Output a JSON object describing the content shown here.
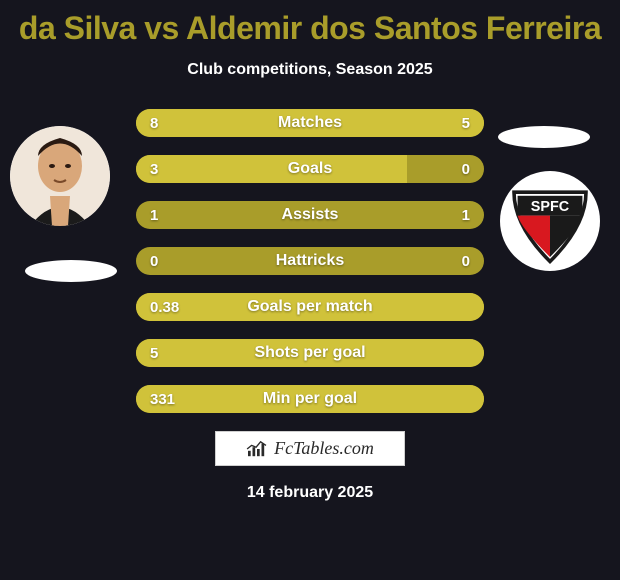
{
  "title": "da Silva vs Aldemir dos Santos Ferreira",
  "subtitle": "Club competitions, Season 2025",
  "date": "14 february 2025",
  "watermark": "FcTables.com",
  "colors": {
    "background": "#15151e",
    "title": "#a99d2a",
    "text": "#ffffff",
    "bar_base": "#a99d2a",
    "bar_highlight": "#d0c23a"
  },
  "bars": [
    {
      "label": "Matches",
      "left": "8",
      "right": "5",
      "left_fill_pct": 62,
      "right_fill_pct": 38
    },
    {
      "label": "Goals",
      "left": "3",
      "right": "0",
      "left_fill_pct": 78,
      "right_fill_pct": 0
    },
    {
      "label": "Assists",
      "left": "1",
      "right": "1",
      "left_fill_pct": 0,
      "right_fill_pct": 0
    },
    {
      "label": "Hattricks",
      "left": "0",
      "right": "0",
      "left_fill_pct": 0,
      "right_fill_pct": 0
    },
    {
      "label": "Goals per match",
      "left": "0.38",
      "right": "",
      "left_fill_pct": 100,
      "right_fill_pct": 0
    },
    {
      "label": "Shots per goal",
      "left": "5",
      "right": "",
      "left_fill_pct": 100,
      "right_fill_pct": 0
    },
    {
      "label": "Min per goal",
      "left": "331",
      "right": "",
      "left_fill_pct": 100,
      "right_fill_pct": 0
    }
  ],
  "left_player_avatar": "player-photo",
  "right_club_badge": "SPFC"
}
